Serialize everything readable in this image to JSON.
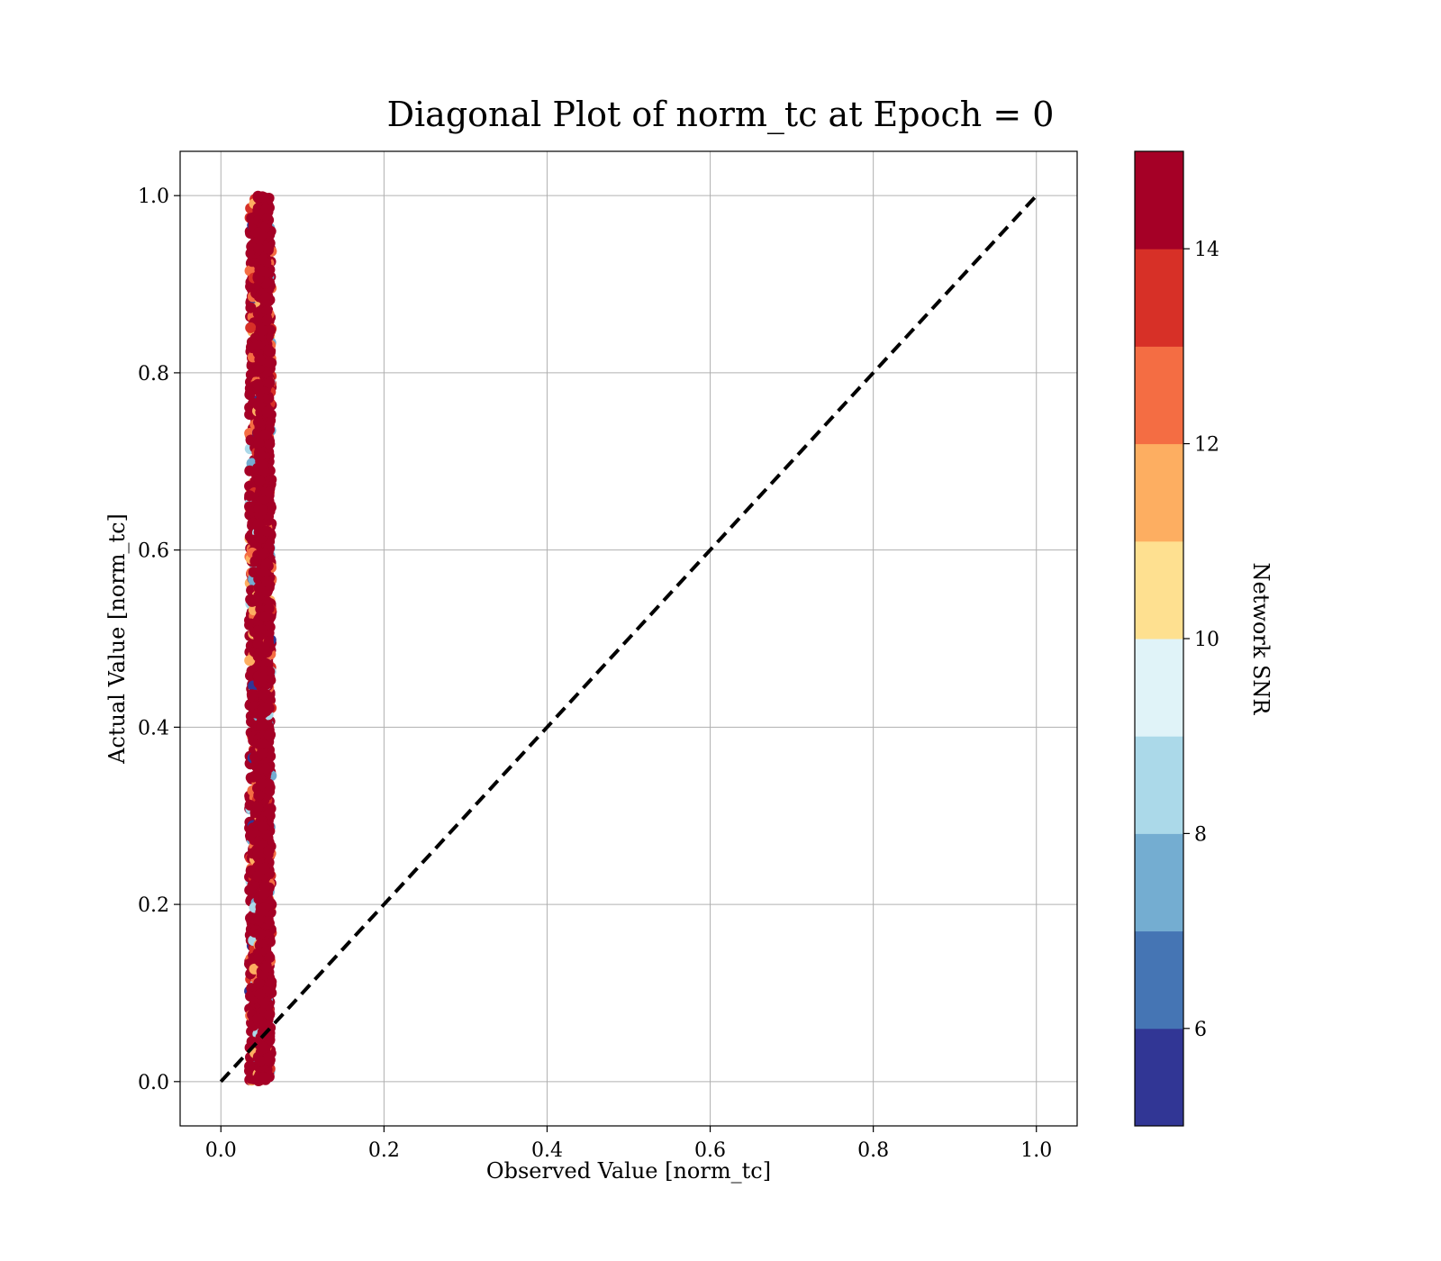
{
  "chart_data": {
    "type": "scatter",
    "title": "Diagonal Plot of norm_tc at Epoch = 0",
    "xlabel": "Observed Value [norm_tc]",
    "ylabel": "Actual Value [norm_tc]",
    "xlim": [
      -0.05,
      1.05
    ],
    "ylim": [
      -0.05,
      1.05
    ],
    "x_ticks": [
      0.0,
      0.2,
      0.4,
      0.6,
      0.8,
      1.0
    ],
    "x_tick_labels": [
      "0.0",
      "0.2",
      "0.4",
      "0.6",
      "0.8",
      "1.0"
    ],
    "y_ticks": [
      0.0,
      0.2,
      0.4,
      0.6,
      0.8,
      1.0
    ],
    "y_tick_labels": [
      "0.0",
      "0.2",
      "0.4",
      "0.6",
      "0.8",
      "1.0"
    ],
    "grid": true,
    "reference_line": {
      "x": [
        0.0,
        1.0
      ],
      "y": [
        0.0,
        1.0
      ],
      "style": "dashed",
      "color": "#000000"
    },
    "scatter_cluster": {
      "x_range": [
        0.035,
        0.062
      ],
      "y_range": [
        0.0,
        1.0
      ],
      "dominant_color": "#a50026"
    },
    "colorbar": {
      "label": "Network SNR",
      "range": [
        5,
        15
      ],
      "ticks": [
        6,
        8,
        10,
        12,
        14
      ],
      "tick_labels": [
        "6",
        "8",
        "10",
        "12",
        "14"
      ],
      "colors": [
        "#313695",
        "#4575b4",
        "#74add1",
        "#abd9e9",
        "#e0f3f8",
        "#fee090",
        "#fdae61",
        "#f46d43",
        "#d73027",
        "#a50026"
      ]
    }
  }
}
